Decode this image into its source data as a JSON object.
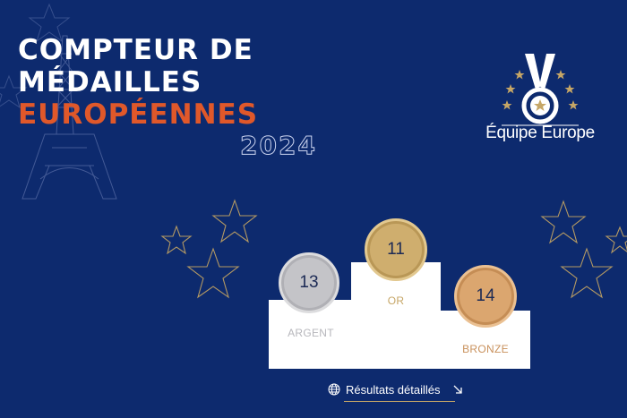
{
  "header": {
    "title_line1": "COMPTEUR DE",
    "title_line2": "MÉDAILLES",
    "title_line3": "EUROPÉENNES",
    "year": "2024"
  },
  "brand": {
    "name": "Équipe Europe",
    "logo_icon": "medal-with-stars-icon"
  },
  "podium": {
    "silver": {
      "count": "13",
      "label": "ARGENT",
      "color": "#c4c4c8"
    },
    "gold": {
      "count": "11",
      "label": "OR",
      "color": "#cfae6e"
    },
    "bronze": {
      "count": "14",
      "label": "BRONZE",
      "color": "#dba66f"
    }
  },
  "link": {
    "label": "Résultats détaillés",
    "icon_left": "globe-icon",
    "icon_right": "arrow-down-right-icon"
  },
  "colors": {
    "background": "#0d2a6e",
    "accent": "#e0582a",
    "star_outline": "#c6a666"
  }
}
